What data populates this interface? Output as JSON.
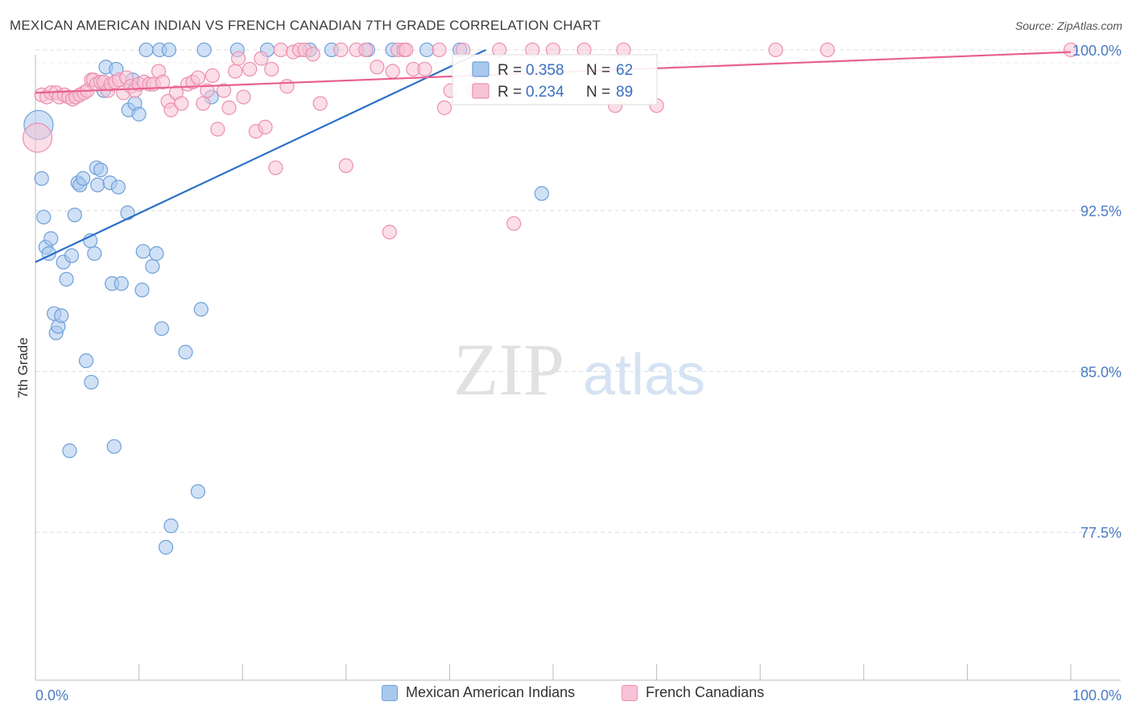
{
  "title": "MEXICAN AMERICAN INDIAN VS FRENCH CANADIAN 7TH GRADE CORRELATION CHART",
  "source": "Source: ZipAtlas.com",
  "watermark": {
    "zip": "ZIP",
    "atlas": "atlas"
  },
  "chart_data": {
    "type": "scatter",
    "xlabel": "",
    "ylabel": "7th Grade",
    "xlim": [
      0,
      100
    ],
    "ylim": [
      70.6,
      101.2
    ],
    "x_tick_labels": [
      "0.0%",
      "100.0%"
    ],
    "y_ticks": [
      77.5,
      85.0,
      92.5,
      100.0
    ],
    "y_tick_labels": [
      "77.5%",
      "85.0%",
      "92.5%",
      "100.0%"
    ],
    "grid": true,
    "legend_placement": "top-center",
    "series": [
      {
        "name": "Mexican American Indians",
        "color": "#6f9fd8",
        "fill": "#a9c8ee",
        "line_color": "#2a6fc9",
        "R": "0.358",
        "N": "62",
        "trend": {
          "x": [
            0,
            43.5
          ],
          "y": [
            90.1,
            100.0
          ]
        },
        "points": [
          [
            0.3,
            96.5
          ],
          [
            0.6,
            94.0
          ],
          [
            0.8,
            92.2
          ],
          [
            1.0,
            90.8
          ],
          [
            1.3,
            90.5
          ],
          [
            1.5,
            91.2
          ],
          [
            1.8,
            87.7
          ],
          [
            2.0,
            86.8
          ],
          [
            2.2,
            87.1
          ],
          [
            2.5,
            87.6
          ],
          [
            2.7,
            90.1
          ],
          [
            3.0,
            89.3
          ],
          [
            3.3,
            81.3
          ],
          [
            3.5,
            90.4
          ],
          [
            3.8,
            92.3
          ],
          [
            4.1,
            93.8
          ],
          [
            4.3,
            93.7
          ],
          [
            4.6,
            94.0
          ],
          [
            4.9,
            85.5
          ],
          [
            5.3,
            91.1
          ],
          [
            5.4,
            84.5
          ],
          [
            5.7,
            90.5
          ],
          [
            5.9,
            94.5
          ],
          [
            6.0,
            93.7
          ],
          [
            6.3,
            94.4
          ],
          [
            6.6,
            98.1
          ],
          [
            6.8,
            99.2
          ],
          [
            7.2,
            93.8
          ],
          [
            7.4,
            89.1
          ],
          [
            7.6,
            81.5
          ],
          [
            7.8,
            99.1
          ],
          [
            8.0,
            93.6
          ],
          [
            8.3,
            89.1
          ],
          [
            8.9,
            92.4
          ],
          [
            9.0,
            97.2
          ],
          [
            9.4,
            98.6
          ],
          [
            9.6,
            97.5
          ],
          [
            10.0,
            97.0
          ],
          [
            10.3,
            88.8
          ],
          [
            10.4,
            90.6
          ],
          [
            10.7,
            100.0
          ],
          [
            11.3,
            89.9
          ],
          [
            11.7,
            90.5
          ],
          [
            12.0,
            100.0
          ],
          [
            12.2,
            87.0
          ],
          [
            12.6,
            76.8
          ],
          [
            12.9,
            100.0
          ],
          [
            13.1,
            77.8
          ],
          [
            14.5,
            85.9
          ],
          [
            15.7,
            79.4
          ],
          [
            16.0,
            87.9
          ],
          [
            16.3,
            100.0
          ],
          [
            17.0,
            97.8
          ],
          [
            19.5,
            100.0
          ],
          [
            22.4,
            100.0
          ],
          [
            26.5,
            100.0
          ],
          [
            28.6,
            100.0
          ],
          [
            32.1,
            100.0
          ],
          [
            34.5,
            100.0
          ],
          [
            37.8,
            100.0
          ],
          [
            41.0,
            100.0
          ],
          [
            48.9,
            93.3
          ]
        ]
      },
      {
        "name": "French Canadians",
        "color": "#ec8fb0",
        "fill": "#f7c3d6",
        "line_color": "#e8608f",
        "R": "0.234",
        "N": "89",
        "trend": {
          "x": [
            0,
            100
          ],
          "y": [
            98.0,
            99.9
          ]
        },
        "points": [
          [
            0.2,
            95.9
          ],
          [
            0.6,
            97.9
          ],
          [
            1.1,
            97.8
          ],
          [
            1.5,
            98.0
          ],
          [
            2.0,
            98.0
          ],
          [
            2.3,
            97.8
          ],
          [
            2.8,
            97.9
          ],
          [
            3.2,
            97.8
          ],
          [
            3.6,
            97.7
          ],
          [
            3.9,
            97.8
          ],
          [
            4.3,
            97.9
          ],
          [
            4.7,
            98.0
          ],
          [
            5.0,
            98.1
          ],
          [
            5.4,
            98.6
          ],
          [
            5.6,
            98.6
          ],
          [
            5.9,
            98.4
          ],
          [
            6.3,
            98.5
          ],
          [
            6.6,
            98.5
          ],
          [
            7.0,
            98.1
          ],
          [
            7.3,
            98.4
          ],
          [
            7.7,
            98.5
          ],
          [
            8.1,
            98.6
          ],
          [
            8.5,
            98.0
          ],
          [
            8.8,
            98.7
          ],
          [
            9.2,
            98.3
          ],
          [
            9.6,
            98.1
          ],
          [
            10.0,
            98.4
          ],
          [
            10.5,
            98.5
          ],
          [
            11.0,
            98.4
          ],
          [
            11.4,
            98.4
          ],
          [
            11.9,
            99.0
          ],
          [
            12.3,
            98.5
          ],
          [
            12.8,
            97.6
          ],
          [
            13.1,
            97.2
          ],
          [
            13.6,
            98.0
          ],
          [
            14.1,
            97.5
          ],
          [
            14.7,
            98.4
          ],
          [
            15.2,
            98.5
          ],
          [
            15.7,
            98.7
          ],
          [
            16.2,
            97.5
          ],
          [
            16.6,
            98.1
          ],
          [
            17.1,
            98.8
          ],
          [
            17.6,
            96.3
          ],
          [
            18.2,
            98.1
          ],
          [
            18.7,
            97.3
          ],
          [
            19.3,
            99.0
          ],
          [
            19.6,
            99.6
          ],
          [
            20.1,
            97.8
          ],
          [
            20.7,
            99.1
          ],
          [
            21.3,
            96.2
          ],
          [
            21.8,
            99.6
          ],
          [
            22.2,
            96.4
          ],
          [
            22.8,
            99.1
          ],
          [
            23.2,
            94.5
          ],
          [
            23.7,
            100.0
          ],
          [
            24.3,
            98.3
          ],
          [
            24.9,
            99.9
          ],
          [
            25.5,
            100.0
          ],
          [
            26.0,
            100.0
          ],
          [
            26.8,
            99.8
          ],
          [
            27.5,
            97.5
          ],
          [
            29.5,
            100.0
          ],
          [
            30.0,
            94.6
          ],
          [
            31.0,
            100.0
          ],
          [
            31.9,
            100.0
          ],
          [
            33.0,
            99.2
          ],
          [
            34.5,
            99.0
          ],
          [
            34.2,
            91.5
          ],
          [
            35.0,
            100.0
          ],
          [
            35.6,
            100.0
          ],
          [
            35.8,
            100.0
          ],
          [
            36.5,
            99.1
          ],
          [
            37.6,
            99.1
          ],
          [
            39.0,
            100.0
          ],
          [
            39.5,
            97.3
          ],
          [
            40.1,
            98.1
          ],
          [
            41.3,
            100.0
          ],
          [
            42.3,
            98.2
          ],
          [
            44.8,
            100.0
          ],
          [
            46.2,
            91.9
          ],
          [
            48.0,
            100.0
          ],
          [
            50.0,
            100.0
          ],
          [
            53.0,
            100.0
          ],
          [
            56.0,
            97.4
          ],
          [
            56.8,
            100.0
          ],
          [
            60.0,
            97.4
          ],
          [
            71.5,
            100.0
          ],
          [
            76.5,
            100.0
          ],
          [
            100.0,
            100.0
          ]
        ]
      }
    ]
  }
}
